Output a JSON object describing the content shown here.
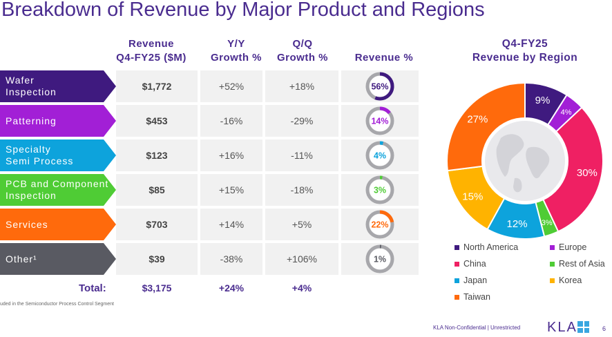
{
  "title": "Breakdown of Revenue by Major Product and Regions",
  "table": {
    "headers": {
      "revenue_line1": "Revenue",
      "revenue_line2": "Q4-FY25 ($M)",
      "yy_line1": "Y/Y",
      "yy_line2": "Growth %",
      "qq_line1": "Q/Q",
      "qq_line2": "Growth %",
      "pct": "Revenue %"
    },
    "rows": [
      {
        "label_line1": "Wafer",
        "label_line2": "Inspection",
        "color": "#3f1a7f",
        "revenue": "$1,772",
        "yy": "+52%",
        "qq": "+18%",
        "pct": 56,
        "pct_label": "56%"
      },
      {
        "label_line1": "Patterning",
        "label_line2": "",
        "color": "#a21fd6",
        "revenue": "$453",
        "yy": "-16%",
        "qq": "-29%",
        "pct": 14,
        "pct_label": "14%"
      },
      {
        "label_line1": "Specialty",
        "label_line2": "Semi Process",
        "color": "#0da3dc",
        "revenue": "$123",
        "yy": "+16%",
        "qq": "-11%",
        "pct": 4,
        "pct_label": "4%"
      },
      {
        "label_line1": "PCB and Component",
        "label_line2": "Inspection",
        "color": "#4fcc35",
        "revenue": "$85",
        "yy": "+15%",
        "qq": "-18%",
        "pct": 3,
        "pct_label": "3%"
      },
      {
        "label_line1": "Services",
        "label_line2": "",
        "color": "#ff6a0c",
        "revenue": "$703",
        "yy": "+14%",
        "qq": "+5%",
        "pct": 22,
        "pct_label": "22%"
      },
      {
        "label_line1": "Other¹",
        "label_line2": "",
        "color": "#595a62",
        "revenue": "$39",
        "yy": "-38%",
        "qq": "+106%",
        "pct": 1,
        "pct_label": "1%"
      }
    ],
    "total": {
      "label": "Total:",
      "revenue": "$3,175",
      "yy": "+24%",
      "qq": "+4%"
    }
  },
  "footnote": "uded in the Semiconductor Process Control Segment",
  "chart_data": {
    "type": "pie",
    "title": "Q4-FY25 Revenue by Region",
    "title_line1": "Q4-FY25",
    "title_line2": "Revenue by Region",
    "categories": [
      "North America",
      "Europe",
      "China",
      "Rest of Asia",
      "Japan",
      "Korea",
      "Taiwan"
    ],
    "values": [
      9,
      4,
      30,
      3,
      12,
      15,
      27
    ],
    "value_labels": [
      "9%",
      "4%",
      "30%",
      "3%",
      "12%",
      "15%",
      "27%"
    ],
    "colors": [
      "#3f1a7f",
      "#a21fd6",
      "#ef2063",
      "#4fcc35",
      "#0da3dc",
      "#ffb300",
      "#ff6a0c"
    ],
    "donut": true,
    "legend_position": "bottom"
  },
  "legend": {
    "north_america": "North America",
    "europe": "Europe",
    "china": "China",
    "rest_of_asia": "Rest of Asia",
    "japan": "Japan",
    "korea": "Korea",
    "taiwan": "Taiwan"
  },
  "footer": {
    "confidentiality": "KLA Non-Confidential | Unrestricted",
    "logo": "KLA",
    "page": "6"
  }
}
